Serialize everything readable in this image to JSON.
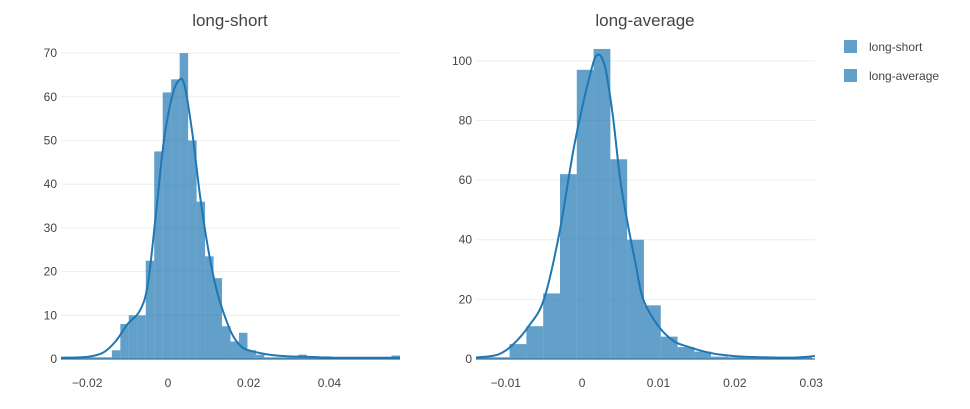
{
  "chart_data": [
    {
      "type": "bar",
      "title": "long-short",
      "xlabel": "",
      "ylabel": "",
      "xlim": [
        -0.0265,
        0.0575
      ],
      "ylim": [
        0,
        73
      ],
      "x_ticks": [
        {
          "value": -0.02,
          "label": "−0.02"
        },
        {
          "value": 0,
          "label": "0"
        },
        {
          "value": 0.02,
          "label": "0.02"
        },
        {
          "value": 0.04,
          "label": "0.04"
        }
      ],
      "y_ticks": [
        {
          "value": 0,
          "label": "0"
        },
        {
          "value": 10,
          "label": "10"
        },
        {
          "value": 20,
          "label": "20"
        },
        {
          "value": 30,
          "label": "30"
        },
        {
          "value": 40,
          "label": "40"
        },
        {
          "value": 50,
          "label": "50"
        },
        {
          "value": 60,
          "label": "60"
        },
        {
          "value": 70,
          "label": "70"
        }
      ],
      "bin_width": 0.0021,
      "series": [
        {
          "name": "long-short",
          "bins": [
            {
              "x0": -0.0265,
              "value": 0.4
            },
            {
              "x0": -0.0244,
              "value": 0.4
            },
            {
              "x0": -0.0223,
              "value": 0.4
            },
            {
              "x0": -0.0202,
              "value": 0.4
            },
            {
              "x0": -0.0181,
              "value": 0.4
            },
            {
              "x0": -0.016,
              "value": 0.4
            },
            {
              "x0": -0.0139,
              "value": 2
            },
            {
              "x0": -0.0118,
              "value": 8
            },
            {
              "x0": -0.0097,
              "value": 10
            },
            {
              "x0": -0.0076,
              "value": 10
            },
            {
              "x0": -0.0055,
              "value": 22.5
            },
            {
              "x0": -0.0034,
              "value": 47.5
            },
            {
              "x0": -0.0013,
              "value": 61
            },
            {
              "x0": 0.0008,
              "value": 64
            },
            {
              "x0": 0.0029,
              "value": 70
            },
            {
              "x0": 0.005,
              "value": 50
            },
            {
              "x0": 0.0071,
              "value": 36
            },
            {
              "x0": 0.0092,
              "value": 23.5
            },
            {
              "x0": 0.0113,
              "value": 18.5
            },
            {
              "x0": 0.0134,
              "value": 7.5
            },
            {
              "x0": 0.0155,
              "value": 4
            },
            {
              "x0": 0.0176,
              "value": 6
            },
            {
              "x0": 0.0197,
              "value": 2
            },
            {
              "x0": 0.0218,
              "value": 1
            },
            {
              "x0": 0.0239,
              "value": 0.4
            },
            {
              "x0": 0.026,
              "value": 0.4
            },
            {
              "x0": 0.0281,
              "value": 0.4
            },
            {
              "x0": 0.0302,
              "value": 0.4
            },
            {
              "x0": 0.0323,
              "value": 1
            },
            {
              "x0": 0.0344,
              "value": 0.6
            },
            {
              "x0": 0.0365,
              "value": 0.5
            },
            {
              "x0": 0.0386,
              "value": 0.6
            },
            {
              "x0": 0.0407,
              "value": 0.3
            },
            {
              "x0": 0.0428,
              "value": 0.3
            },
            {
              "x0": 0.0449,
              "value": 0.3
            },
            {
              "x0": 0.047,
              "value": 0.3
            },
            {
              "x0": 0.0491,
              "value": 0.3
            },
            {
              "x0": 0.0512,
              "value": 0.3
            },
            {
              "x0": 0.0533,
              "value": 0.3
            },
            {
              "x0": 0.0554,
              "value": 0.8
            }
          ],
          "kde": [
            [
              -0.0265,
              0.3
            ],
            [
              -0.02,
              0.5
            ],
            [
              -0.016,
              1.5
            ],
            [
              -0.013,
              4
            ],
            [
              -0.01,
              8
            ],
            [
              -0.007,
              11
            ],
            [
              -0.005,
              17
            ],
            [
              -0.003,
              33
            ],
            [
              -0.001,
              50
            ],
            [
              0.001,
              60
            ],
            [
              0.0025,
              63.5
            ],
            [
              0.004,
              63
            ],
            [
              0.006,
              52
            ],
            [
              0.008,
              37
            ],
            [
              0.01,
              25
            ],
            [
              0.012,
              16
            ],
            [
              0.014,
              10
            ],
            [
              0.016,
              5.5
            ],
            [
              0.018,
              3
            ],
            [
              0.02,
              2
            ],
            [
              0.025,
              1
            ],
            [
              0.03,
              0.6
            ],
            [
              0.035,
              0.5
            ],
            [
              0.04,
              0.3
            ],
            [
              0.05,
              0.3
            ],
            [
              0.0575,
              0.3
            ]
          ]
        }
      ]
    },
    {
      "type": "bar",
      "title": "long-average",
      "xlabel": "",
      "ylabel": "",
      "xlim": [
        -0.0139,
        0.0305
      ],
      "ylim": [
        0,
        107
      ],
      "x_ticks": [
        {
          "value": -0.01,
          "label": "−0.01"
        },
        {
          "value": 0,
          "label": "0"
        },
        {
          "value": 0.01,
          "label": "0.01"
        },
        {
          "value": 0.02,
          "label": "0.02"
        },
        {
          "value": 0.03,
          "label": "0.03"
        }
      ],
      "y_ticks": [
        {
          "value": 0,
          "label": "0"
        },
        {
          "value": 20,
          "label": "20"
        },
        {
          "value": 40,
          "label": "40"
        },
        {
          "value": 60,
          "label": "60"
        },
        {
          "value": 80,
          "label": "80"
        },
        {
          "value": 100,
          "label": "100"
        }
      ],
      "bin_width": 0.0022,
      "series": [
        {
          "name": "long-average",
          "bins": [
            {
              "x0": -0.0139,
              "value": 0.6
            },
            {
              "x0": -0.0117,
              "value": 0.6
            },
            {
              "x0": -0.0095,
              "value": 5
            },
            {
              "x0": -0.0073,
              "value": 11
            },
            {
              "x0": -0.0051,
              "value": 22
            },
            {
              "x0": -0.0029,
              "value": 62
            },
            {
              "x0": -0.0007,
              "value": 97
            },
            {
              "x0": 0.0015,
              "value": 104
            },
            {
              "x0": 0.0037,
              "value": 67
            },
            {
              "x0": 0.0059,
              "value": 40
            },
            {
              "x0": 0.0081,
              "value": 18
            },
            {
              "x0": 0.0103,
              "value": 7.5
            },
            {
              "x0": 0.0125,
              "value": 4
            },
            {
              "x0": 0.0147,
              "value": 2.5
            },
            {
              "x0": 0.0169,
              "value": 0.8
            },
            {
              "x0": 0.0191,
              "value": 0.6
            },
            {
              "x0": 0.0213,
              "value": 0.4
            },
            {
              "x0": 0.0235,
              "value": 0.3
            },
            {
              "x0": 0.0257,
              "value": 0.3
            },
            {
              "x0": 0.0279,
              "value": 0.6
            }
          ],
          "kde": [
            [
              -0.0139,
              0.5
            ],
            [
              -0.011,
              1.5
            ],
            [
              -0.009,
              5
            ],
            [
              -0.007,
              11
            ],
            [
              -0.005,
              20
            ],
            [
              -0.003,
              42
            ],
            [
              -0.001,
              72
            ],
            [
              0.001,
              95
            ],
            [
              0.002,
              102
            ],
            [
              0.003,
              98
            ],
            [
              0.004,
              82
            ],
            [
              0.005,
              60
            ],
            [
              0.006,
              45
            ],
            [
              0.007,
              32
            ],
            [
              0.008,
              20
            ],
            [
              0.01,
              11
            ],
            [
              0.012,
              6
            ],
            [
              0.014,
              4
            ],
            [
              0.016,
              2.5
            ],
            [
              0.018,
              1.5
            ],
            [
              0.021,
              0.8
            ],
            [
              0.025,
              0.5
            ],
            [
              0.028,
              0.5
            ],
            [
              0.0305,
              1
            ]
          ]
        }
      ]
    }
  ],
  "legend": {
    "items": [
      {
        "label": "long-short",
        "color": "#1f77b4"
      },
      {
        "label": "long-average",
        "color": "#1f77b4"
      }
    ],
    "placement": "top-right"
  },
  "colors": {
    "bar_fill": "#1f77b4",
    "bar_opacity": 0.7,
    "kde_line": "#1f77b4"
  }
}
